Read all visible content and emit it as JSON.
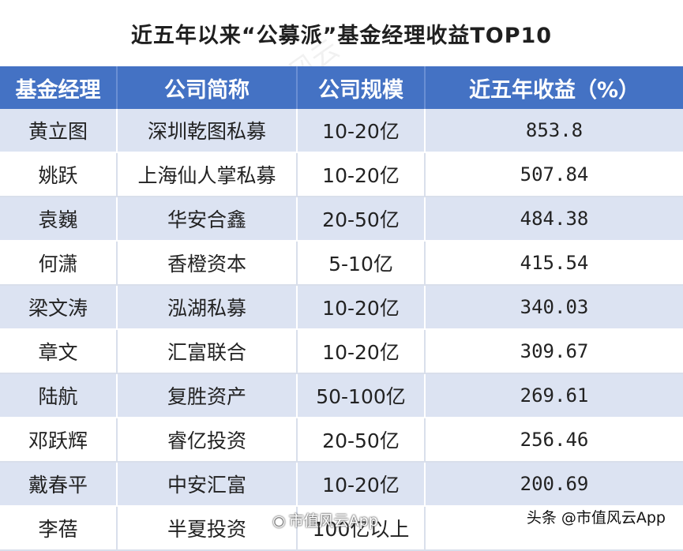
{
  "title": "近五年以来“公募派”基金经理收益TOP10",
  "columns": [
    "基金经理",
    "公司简称",
    "公司规模",
    "近五年收益（%）"
  ],
  "rows": [
    {
      "manager": "黄立图",
      "company": "深圳乾图私募",
      "scale": "10-20亿",
      "return": "853.8"
    },
    {
      "manager": "姚跃",
      "company": "上海仙人掌私募",
      "scale": "10-20亿",
      "return": "507.84"
    },
    {
      "manager": "袁巍",
      "company": "华安合鑫",
      "scale": "20-50亿",
      "return": "484.38"
    },
    {
      "manager": "何潇",
      "company": "香橙资本",
      "scale": "5-10亿",
      "return": "415.54"
    },
    {
      "manager": "梁文涛",
      "company": "泓湖私募",
      "scale": "10-20亿",
      "return": "340.03"
    },
    {
      "manager": "章文",
      "company": "汇富联合",
      "scale": "10-20亿",
      "return": "309.67"
    },
    {
      "manager": "陆航",
      "company": "复胜资产",
      "scale": "50-100亿",
      "return": "269.61"
    },
    {
      "manager": "邓跃辉",
      "company": "睿亿投资",
      "scale": "20-50亿",
      "return": "256.46"
    },
    {
      "manager": "戴春平",
      "company": "中安汇富",
      "scale": "10-20亿",
      "return": "200.69"
    },
    {
      "manager": "李蓓",
      "company": "半夏投资",
      "scale": "100亿以上",
      "return": ""
    }
  ],
  "watermark": {
    "footer": "头条 @市值风云App",
    "weibo": "市值风云App",
    "background": "市值风云"
  }
}
